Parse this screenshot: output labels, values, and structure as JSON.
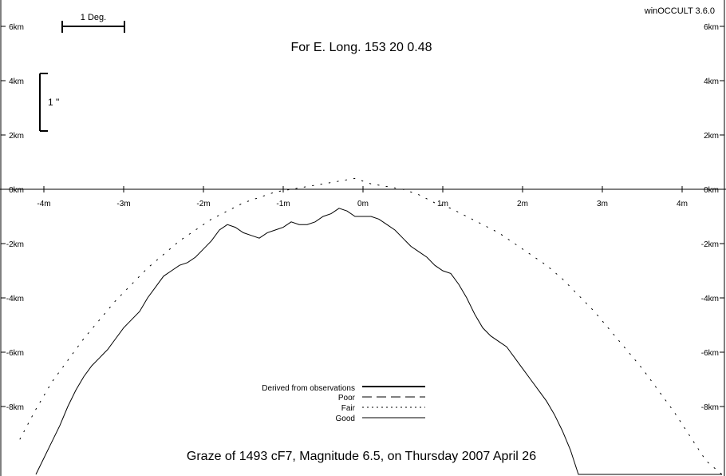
{
  "version": "winOCCULT 3.6.0",
  "subtitle": "For E. Long.  153 20  0.48",
  "footer": "Graze of     1493  cF7,  Magnitude   6.5,  on Thursday  2007  April  26",
  "scale_deg_label": "1 Deg.",
  "scale_arcsec_label": "1 \"",
  "legend": [
    {
      "label": "Derived from observations",
      "style": "thick"
    },
    {
      "label": "Poor",
      "style": "dashed"
    },
    {
      "label": "Fair",
      "style": "dotted"
    },
    {
      "label": "Good",
      "style": "solid"
    }
  ],
  "chart_data": {
    "type": "line",
    "xlabel": "",
    "ylabel": "",
    "xlim": [
      -4.55,
      4.55
    ],
    "ylim": [
      -10.5,
      7.0
    ],
    "x_ticks": [
      -4,
      -3,
      -2,
      -1,
      0,
      1,
      2,
      3,
      4
    ],
    "x_tick_labels": [
      "-4m",
      "-3m",
      "-2m",
      "-1m",
      "0m",
      "1m",
      "2m",
      "3m",
      "4m"
    ],
    "y_ticks": [
      6,
      4,
      2,
      0,
      -2,
      -4,
      -6,
      -8
    ],
    "y_tick_labels": [
      "6km",
      "4km",
      "2km",
      "0km",
      "-2km",
      "-4km",
      "-6km",
      "-8km"
    ],
    "grid": false,
    "series": [
      {
        "name": "Good",
        "style": "solid",
        "x": [
          -4.1,
          -4.0,
          -3.9,
          -3.8,
          -3.7,
          -3.6,
          -3.5,
          -3.4,
          -3.3,
          -3.2,
          -3.1,
          -3.0,
          -2.9,
          -2.8,
          -2.7,
          -2.6,
          -2.5,
          -2.4,
          -2.3,
          -2.2,
          -2.1,
          -2.0,
          -1.9,
          -1.8,
          -1.7,
          -1.6,
          -1.5,
          -1.4,
          -1.3,
          -1.2,
          -1.1,
          -1.0,
          -0.9,
          -0.8,
          -0.7,
          -0.6,
          -0.5,
          -0.4,
          -0.3,
          -0.2,
          -0.1,
          0.0,
          0.1,
          0.2,
          0.3,
          0.4,
          0.5,
          0.6,
          0.7,
          0.8,
          0.9,
          1.0,
          1.1,
          1.2,
          1.3,
          1.4,
          1.5,
          1.6,
          1.7,
          1.8,
          1.9,
          2.0,
          2.1,
          2.2,
          2.3,
          2.4,
          2.5,
          2.6,
          2.7,
          2.8,
          2.9,
          3.0,
          3.1,
          3.2,
          3.3,
          3.4,
          3.5,
          3.6,
          3.7,
          3.8,
          3.9,
          4.0,
          4.1,
          4.2,
          4.3,
          4.4,
          4.5
        ],
        "y": [
          -10.5,
          -9.9,
          -9.3,
          -8.7,
          -8.0,
          -7.4,
          -6.9,
          -6.5,
          -6.2,
          -5.9,
          -5.5,
          -5.1,
          -4.8,
          -4.5,
          -4.0,
          -3.6,
          -3.2,
          -3.0,
          -2.8,
          -2.7,
          -2.5,
          -2.2,
          -1.9,
          -1.5,
          -1.3,
          -1.4,
          -1.6,
          -1.7,
          -1.8,
          -1.6,
          -1.5,
          -1.4,
          -1.2,
          -1.3,
          -1.3,
          -1.2,
          -1.0,
          -0.9,
          -0.7,
          -0.8,
          -1.0,
          -1.0,
          -1.0,
          -1.1,
          -1.3,
          -1.5,
          -1.8,
          -2.1,
          -2.3,
          -2.5,
          -2.8,
          -3.0,
          -3.1,
          -3.5,
          -4.0,
          -4.6,
          -5.1,
          -5.4,
          -5.6,
          -5.8,
          -6.2,
          -6.6,
          -7.0,
          -7.4,
          -7.8,
          -8.3,
          -8.9,
          -9.6,
          -10.5,
          -10.5,
          -10.5,
          -10.5,
          -10.5,
          -10.5,
          -10.5,
          -10.5,
          -10.5,
          -10.5,
          -10.5,
          -10.5,
          -10.5,
          -10.5,
          -10.5,
          -10.5,
          -10.5,
          -10.5,
          -10.5
        ]
      },
      {
        "name": "Fair",
        "style": "dotted",
        "x": [
          -4.3,
          -4.1,
          -3.9,
          -3.7,
          -3.5,
          -3.3,
          -3.1,
          -2.9,
          -2.7,
          -2.5,
          -2.3,
          -2.1,
          -1.9,
          -1.7,
          -1.5,
          -1.3,
          -1.1,
          -0.9,
          -0.7,
          -0.5,
          -0.3,
          -0.1,
          0.1,
          0.3,
          0.5,
          0.7,
          0.9,
          1.1,
          1.3,
          1.5,
          1.7,
          1.9,
          2.1,
          2.3,
          2.5,
          2.7,
          2.9,
          3.1,
          3.3,
          3.5,
          3.7,
          3.9,
          4.1,
          4.3,
          4.5
        ],
        "y": [
          -9.2,
          -8.1,
          -7.1,
          -6.3,
          -5.5,
          -4.8,
          -4.1,
          -3.5,
          -2.9,
          -2.4,
          -1.9,
          -1.5,
          -1.1,
          -0.8,
          -0.5,
          -0.3,
          -0.1,
          0.0,
          0.1,
          0.2,
          0.3,
          0.4,
          0.2,
          0.1,
          0.0,
          -0.2,
          -0.5,
          -0.7,
          -1.0,
          -1.3,
          -1.6,
          -2.0,
          -2.4,
          -2.8,
          -3.3,
          -3.9,
          -4.5,
          -5.2,
          -5.9,
          -6.6,
          -7.4,
          -8.2,
          -9.1,
          -10.0,
          -10.5
        ]
      }
    ]
  }
}
